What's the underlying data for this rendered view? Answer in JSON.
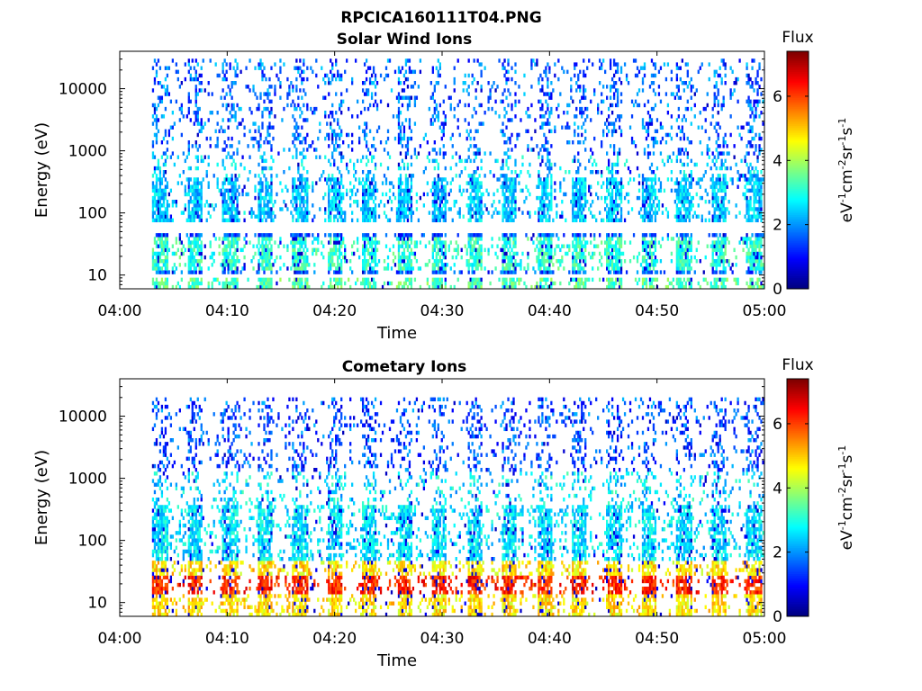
{
  "figure": {
    "title": "RPCICA160111T04.PNG"
  },
  "chart_data": [
    {
      "type": "heatmap",
      "title": "Solar Wind Ions",
      "xlabel": "Time",
      "ylabel": "Energy (eV)",
      "y_scale": "log",
      "x_ticks": [
        "04:00",
        "04:10",
        "04:20",
        "04:30",
        "04:40",
        "04:50",
        "05:00"
      ],
      "xlim": [
        "04:00",
        "05:00"
      ],
      "y_ticks": [
        10,
        100,
        1000,
        10000
      ],
      "y_tick_labels": [
        "10",
        "100",
        "1000",
        "10000"
      ],
      "ylim": [
        6,
        40000
      ],
      "colorbar": {
        "label": "Flux",
        "unit": "eV-1cm-2sr-1s-1",
        "range": [
          0,
          7.4
        ],
        "ticks": [
          0,
          2,
          4,
          6
        ],
        "tick_labels": [
          "0",
          "2",
          "4",
          "6"
        ],
        "colormap": "jet"
      },
      "data_start": "04:03",
      "data_end": "05:00",
      "energy_sweep_minutes": 3.25,
      "bands": [
        {
          "energy": [
            6,
            9
          ],
          "flux": 3.4
        },
        {
          "energy": [
            10,
            45
          ],
          "flux": 1.6
        },
        {
          "energy": [
            12,
            40
          ],
          "flux": 3.1
        },
        {
          "energy": [
            70,
            800
          ],
          "flux": 2.4
        },
        {
          "energy": [
            800,
            30000
          ],
          "flux": 1.7
        }
      ],
      "grid": false,
      "legend": "colorbar-right"
    },
    {
      "type": "heatmap",
      "title": "Cometary Ions",
      "xlabel": "Time",
      "ylabel": "Energy (eV)",
      "y_scale": "log",
      "x_ticks": [
        "04:00",
        "04:10",
        "04:20",
        "04:30",
        "04:40",
        "04:50",
        "05:00"
      ],
      "xlim": [
        "04:00",
        "05:00"
      ],
      "y_ticks": [
        10,
        100,
        1000,
        10000
      ],
      "y_tick_labels": [
        "10",
        "100",
        "1000",
        "10000"
      ],
      "ylim": [
        6,
        40000
      ],
      "colorbar": {
        "label": "Flux",
        "unit": "eV-1cm-2sr-1s-1",
        "range": [
          0,
          7.4
        ],
        "ticks": [
          0,
          2,
          4,
          6
        ],
        "tick_labels": [
          "0",
          "2",
          "4",
          "6"
        ],
        "colormap": "jet"
      },
      "data_start": "04:03",
      "data_end": "05:00",
      "energy_sweep_minutes": 3.25,
      "bands": [
        {
          "energy": [
            6,
            45
          ],
          "flux": 4.8
        },
        {
          "energy": [
            14,
            28
          ],
          "flux": 6.2
        },
        {
          "energy": [
            45,
            1200
          ],
          "flux": 2.6
        },
        {
          "energy": [
            1200,
            20000
          ],
          "flux": 1.5
        }
      ],
      "grid": false,
      "legend": "colorbar-right"
    }
  ]
}
